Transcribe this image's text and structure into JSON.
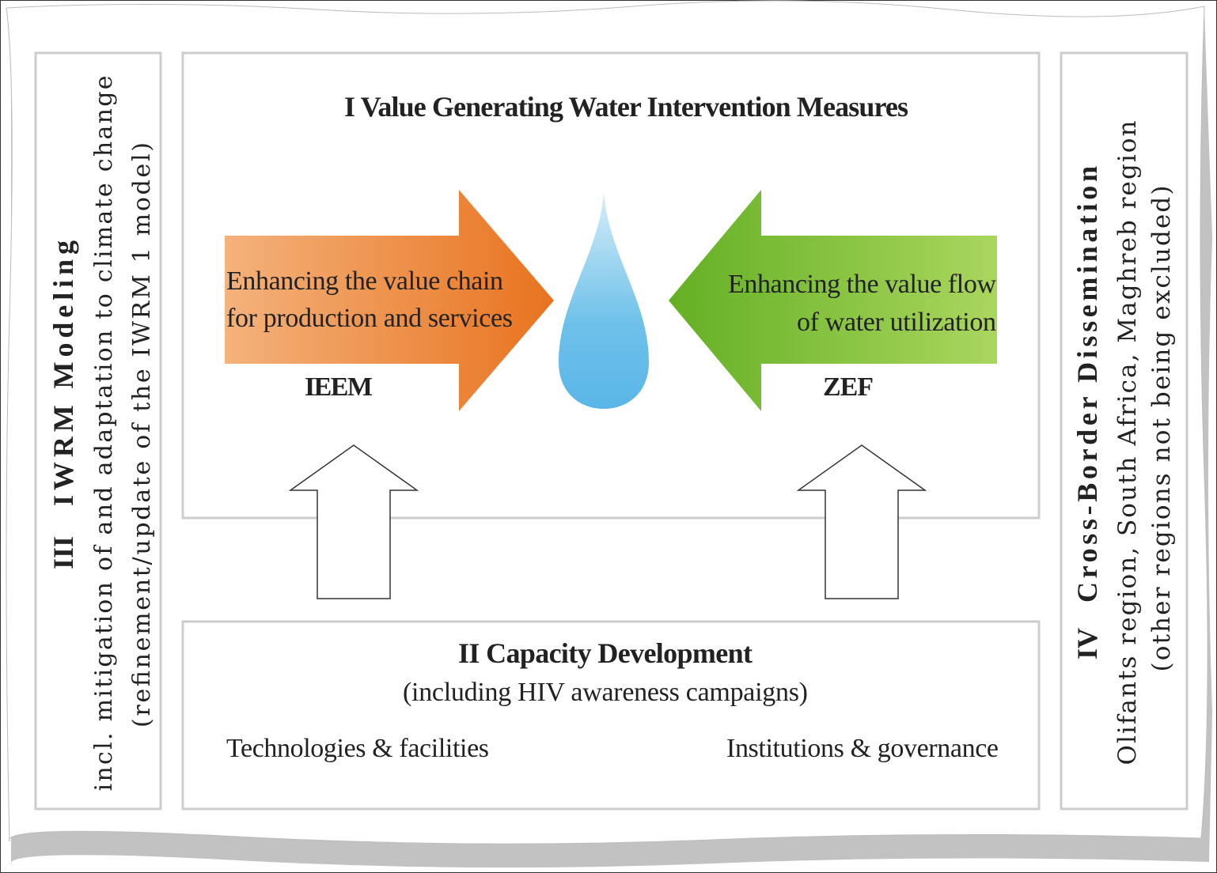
{
  "panels": {
    "iwrm": {
      "numeral": "III",
      "title": "IWRM Modeling",
      "lines": [
        "incl. mitigation of and adaptation to climate change",
        "(refinement/update of the IWRM 1 model)"
      ]
    },
    "value": {
      "title": "I   Value Generating Water Intervention Measures",
      "left_arrow": {
        "lines": [
          "Enhancing the value chain",
          "for production and services"
        ],
        "label": "IEEM"
      },
      "right_arrow": {
        "lines": [
          "Enhancing the value flow",
          "of water utilization"
        ],
        "label": "ZEF"
      }
    },
    "capacity": {
      "title": "II   Capacity Development",
      "subtitle": "(including HIV awareness campaigns)",
      "left": "Technologies & facilities",
      "right": "Institutions & governance"
    },
    "dissemination": {
      "numeral": "IV",
      "title": "Cross-Border Dissemination",
      "lines": [
        "Olifants region, South Africa, Maghreb region",
        "(other regions not being excluded)"
      ]
    }
  }
}
